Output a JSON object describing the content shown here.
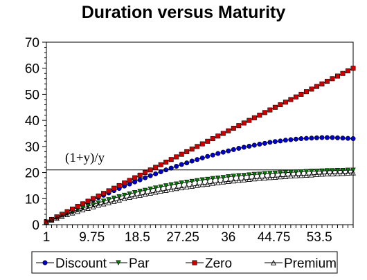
{
  "chart_data": {
    "type": "line",
    "title": "Duration versus Maturity",
    "xlabel": "",
    "ylabel": "",
    "ylim": [
      0,
      70
    ],
    "yticks": [
      "0",
      "10",
      "20",
      "30",
      "40",
      "50",
      "60",
      "70"
    ],
    "xtick_labels": [
      "1",
      "9.75",
      "18.5",
      "27.25",
      "36",
      "44.75",
      "53.5"
    ],
    "x": [
      1,
      2,
      3,
      4,
      5,
      6,
      7,
      8,
      9,
      10,
      11,
      12,
      13,
      14,
      15,
      16,
      17,
      18,
      19,
      20,
      21,
      22,
      23,
      24,
      25,
      26,
      27,
      28,
      29,
      30,
      31,
      32,
      33,
      34,
      35,
      36,
      37,
      38,
      39,
      40,
      41,
      42,
      43,
      44,
      45,
      46,
      47,
      48,
      49,
      50,
      51,
      52,
      53,
      54,
      55,
      56,
      57,
      58,
      59,
      60
    ],
    "reference_line": {
      "value": 21,
      "label": "(1+y)/y"
    },
    "grid": false,
    "legend_position": "bottom",
    "series": [
      {
        "name": "Discount",
        "color": "#0000cc",
        "marker": "circle",
        "values": [
          1,
          2,
          2.9,
          3.9,
          4.9,
          5.8,
          6.8,
          7.7,
          8.6,
          9.5,
          10.4,
          11.3,
          12.2,
          13.1,
          13.9,
          14.8,
          15.6,
          16.4,
          17.2,
          18,
          18.8,
          19.5,
          20.3,
          21,
          21.7,
          22.4,
          23.1,
          23.7,
          24.4,
          25,
          25.6,
          26.2,
          26.7,
          27.3,
          27.8,
          28.3,
          28.8,
          29.3,
          29.7,
          30.1,
          30.5,
          30.9,
          31.2,
          31.6,
          31.9,
          32.1,
          32.4,
          32.6,
          32.8,
          33,
          33.1,
          33.2,
          33.3,
          33.4,
          33.4,
          33.4,
          33.3,
          33.2,
          33.1,
          33
        ]
      },
      {
        "name": "Par",
        "color": "#008000",
        "marker": "triangle-down",
        "values": [
          1,
          1.8,
          2.6,
          3.4,
          4.2,
          4.9,
          5.7,
          6.4,
          7.1,
          7.7,
          8.4,
          9,
          9.6,
          10.2,
          10.7,
          11.3,
          11.8,
          12.3,
          12.8,
          13.2,
          13.7,
          14.1,
          14.5,
          14.9,
          15.3,
          15.6,
          16,
          16.3,
          16.6,
          16.9,
          17.2,
          17.4,
          17.7,
          17.9,
          18.1,
          18.4,
          18.6,
          18.8,
          18.9,
          19.1,
          19.3,
          19.4,
          19.6,
          19.7,
          19.8,
          19.9,
          20,
          20.1,
          20.2,
          20.3,
          20.4,
          20.5,
          20.5,
          20.6,
          20.7,
          20.7,
          20.8,
          20.8,
          20.9,
          20.9
        ]
      },
      {
        "name": "Zero",
        "color": "#cc0000",
        "marker": "square",
        "values": [
          1,
          2,
          3,
          4,
          5,
          6,
          7,
          8,
          9,
          10,
          11,
          12,
          13,
          14,
          15,
          16,
          17,
          18,
          19,
          20,
          21,
          22,
          23,
          24,
          25,
          26,
          27,
          28,
          29,
          30,
          31,
          32,
          33,
          34,
          35,
          36,
          37,
          38,
          39,
          40,
          41,
          42,
          43,
          44,
          45,
          46,
          47,
          48,
          49,
          50,
          51,
          52,
          53,
          54,
          55,
          56,
          57,
          58,
          59,
          60
        ]
      },
      {
        "name": "Premium",
        "color": "#000000",
        "marker": "triangle-up",
        "values": [
          1,
          1.8,
          2.5,
          3.2,
          3.9,
          4.5,
          5.1,
          5.7,
          6.3,
          6.9,
          7.5,
          8,
          8.5,
          9,
          9.5,
          10,
          10.5,
          10.9,
          11.3,
          11.7,
          12.1,
          12.5,
          12.9,
          13.2,
          13.6,
          13.9,
          14.2,
          14.5,
          14.8,
          15.1,
          15.4,
          15.6,
          15.9,
          16.1,
          16.4,
          16.6,
          16.8,
          17,
          17.2,
          17.4,
          17.6,
          17.8,
          17.9,
          18.1,
          18.2,
          18.4,
          18.5,
          18.7,
          18.8,
          18.9,
          19,
          19.1,
          19.3,
          19.4,
          19.5,
          19.5,
          19.6,
          19.7,
          19.8,
          19.9
        ]
      }
    ]
  }
}
